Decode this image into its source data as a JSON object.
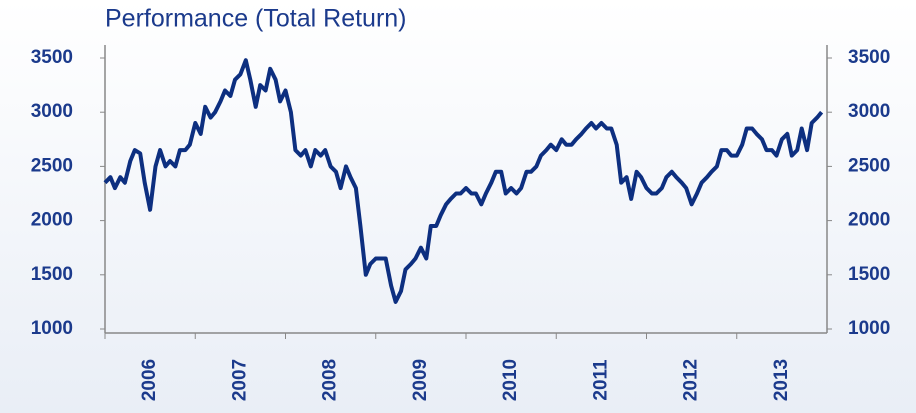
{
  "chart_data": {
    "type": "line",
    "title": "Performance (Total Return)",
    "color": "#0d2f80",
    "xlim": [
      2006,
      2014
    ],
    "xticks": [
      2006,
      2007,
      2008,
      2009,
      2010,
      2011,
      2012,
      2013
    ],
    "ylim": [
      1000,
      3500
    ],
    "yticks": [
      1000,
      1500,
      2000,
      2500,
      3000,
      3500
    ],
    "y2lim": [
      1000,
      3500
    ],
    "y2ticks": [
      1000,
      1500,
      2000,
      2500,
      3000,
      3500
    ],
    "x": [
      2006.0,
      2006.06,
      2006.11,
      2006.17,
      2006.22,
      2006.28,
      2006.33,
      2006.39,
      2006.44,
      2006.5,
      2006.56,
      2006.61,
      2006.67,
      2006.72,
      2006.78,
      2006.83,
      2006.89,
      2006.94,
      2007.0,
      2007.06,
      2007.11,
      2007.17,
      2007.22,
      2007.28,
      2007.33,
      2007.39,
      2007.44,
      2007.5,
      2007.56,
      2007.61,
      2007.67,
      2007.72,
      2007.78,
      2007.83,
      2007.89,
      2007.94,
      2008.0,
      2008.06,
      2008.11,
      2008.17,
      2008.22,
      2008.28,
      2008.33,
      2008.39,
      2008.44,
      2008.5,
      2008.56,
      2008.61,
      2008.67,
      2008.72,
      2008.78,
      2008.83,
      2008.89,
      2008.94,
      2009.0,
      2009.06,
      2009.11,
      2009.17,
      2009.22,
      2009.28,
      2009.33,
      2009.39,
      2009.44,
      2009.5,
      2009.56,
      2009.61,
      2009.67,
      2009.72,
      2009.78,
      2009.83,
      2009.89,
      2009.94,
      2010.0,
      2010.06,
      2010.11,
      2010.17,
      2010.22,
      2010.28,
      2010.33,
      2010.39,
      2010.44,
      2010.5,
      2010.56,
      2010.61,
      2010.67,
      2010.72,
      2010.78,
      2010.83,
      2010.89,
      2010.94,
      2011.0,
      2011.06,
      2011.11,
      2011.17,
      2011.22,
      2011.28,
      2011.33,
      2011.39,
      2011.44,
      2011.5,
      2011.56,
      2011.61,
      2011.67,
      2011.72,
      2011.78,
      2011.83,
      2011.89,
      2011.94,
      2012.0,
      2012.06,
      2012.11,
      2012.17,
      2012.22,
      2012.28,
      2012.33,
      2012.39,
      2012.44,
      2012.5,
      2012.56,
      2012.61,
      2012.67,
      2012.72,
      2012.78,
      2012.83,
      2012.89,
      2012.94,
      2013.0,
      2013.06,
      2013.11,
      2013.17,
      2013.22,
      2013.28,
      2013.33,
      2013.39,
      2013.44,
      2013.5,
      2013.56,
      2013.61,
      2013.67,
      2013.72,
      2013.78,
      2013.83,
      2013.89,
      2013.94
    ],
    "values": [
      2350,
      2400,
      2300,
      2400,
      2350,
      2550,
      2650,
      2620,
      2350,
      2100,
      2500,
      2650,
      2500,
      2550,
      2500,
      2650,
      2650,
      2700,
      2900,
      2800,
      3050,
      2950,
      3000,
      3100,
      3200,
      3150,
      3300,
      3350,
      3480,
      3300,
      3050,
      3250,
      3200,
      3400,
      3300,
      3100,
      3200,
      3000,
      2650,
      2600,
      2650,
      2500,
      2650,
      2600,
      2650,
      2500,
      2450,
      2300,
      2500,
      2400,
      2300,
      1950,
      1500,
      1600,
      1650,
      1650,
      1650,
      1400,
      1250,
      1350,
      1550,
      1600,
      1650,
      1750,
      1650,
      1950,
      1950,
      2050,
      2150,
      2200,
      2250,
      2250,
      2300,
      2250,
      2250,
      2150,
      2250,
      2350,
      2450,
      2450,
      2250,
      2300,
      2250,
      2300,
      2450,
      2450,
      2500,
      2600,
      2650,
      2700,
      2650,
      2750,
      2700,
      2700,
      2750,
      2800,
      2850,
      2900,
      2850,
      2900,
      2850,
      2850,
      2700,
      2350,
      2400,
      2200,
      2450,
      2400,
      2300,
      2250,
      2250,
      2300,
      2400,
      2450,
      2400,
      2350,
      2300,
      2150,
      2250,
      2350,
      2400,
      2450,
      2500,
      2650,
      2650,
      2600,
      2600,
      2700,
      2850,
      2850,
      2800,
      2750,
      2650,
      2650,
      2600,
      2750,
      2800,
      2600,
      2650,
      2850,
      2650,
      2900,
      2950,
      3000
    ]
  }
}
